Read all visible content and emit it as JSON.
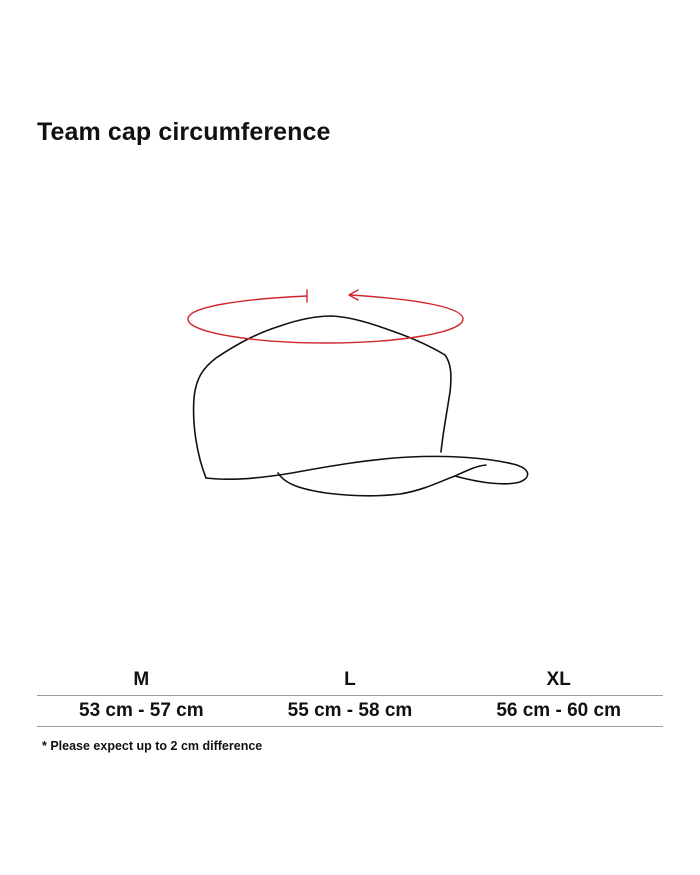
{
  "title": "Team cap circumference",
  "illustration": {
    "subject": "cap-icon",
    "measure_indicator": "circumference-arrow-icon",
    "cap_outline_color": "#111111",
    "arrow_color": "#d0262a"
  },
  "size_table": {
    "headers": [
      "M",
      "L",
      "XL"
    ],
    "values": [
      "53 cm - 57 cm",
      "55 cm - 58 cm",
      "56 cm - 60 cm"
    ],
    "rule_color": "#9a9a9a"
  },
  "note": "* Please expect up to 2 cm difference"
}
